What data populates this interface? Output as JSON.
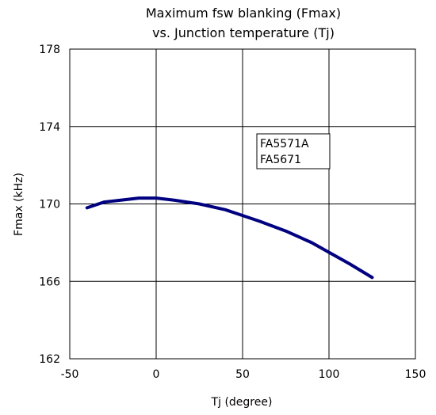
{
  "chart_data": {
    "type": "line",
    "title_lines": [
      "Maximum fsw blanking (Fmax)",
      "vs. Junction temperature (Tj)"
    ],
    "xlabel": "Tj (degree)",
    "ylabel": "Fmax (kHz)",
    "xlim": [
      -50,
      150
    ],
    "ylim": [
      162,
      178
    ],
    "xticks": [
      -50,
      0,
      50,
      100,
      150
    ],
    "yticks": [
      162,
      166,
      170,
      174,
      178
    ],
    "xtick_labels": [
      "-50",
      "0",
      "50",
      "100",
      "150"
    ],
    "ytick_labels": [
      "162",
      "166",
      "170",
      "174",
      "178"
    ],
    "grid": true,
    "legend_box": [
      "FA5571A",
      "FA5671"
    ],
    "series": [
      {
        "color": "#000080",
        "x": [
          -40,
          -30,
          -20,
          -10,
          0,
          10,
          25,
          40,
          50,
          60,
          75,
          90,
          100,
          112,
          125
        ],
        "y": [
          169.8,
          170.1,
          170.2,
          170.3,
          170.3,
          170.2,
          170.0,
          169.7,
          169.4,
          169.1,
          168.6,
          168.0,
          167.5,
          166.9,
          166.2
        ]
      }
    ]
  }
}
